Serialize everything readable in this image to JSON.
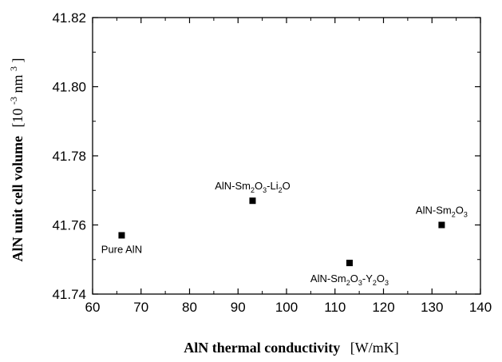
{
  "chart_data": {
    "type": "scatter",
    "xlabel": {
      "main": "AlN  thermal conductivity",
      "unit": "[W/mK]"
    },
    "ylabel": {
      "main": "AlN unit cell volume",
      "unit_prefix": "[10",
      "unit_exp1": "-3",
      "unit_mid": "nm",
      "unit_exp2": "3",
      "unit_suffix": "]"
    },
    "xlim": [
      60,
      140
    ],
    "ylim": [
      41.74,
      41.82
    ],
    "xticks": [
      60,
      70,
      80,
      90,
      100,
      110,
      120,
      130,
      140
    ],
    "xtick_labels": [
      "60",
      "70",
      "80",
      "90",
      "100",
      "110",
      "120",
      "130",
      "140"
    ],
    "yticks": [
      41.74,
      41.76,
      41.78,
      41.8,
      41.82
    ],
    "ytick_labels": [
      "41.74",
      "41.76",
      "41.78",
      "41.80",
      "41.82"
    ],
    "grid": false,
    "points": [
      {
        "x": 66,
        "y": 41.757,
        "label": [
          {
            "t": "Pure AlN"
          }
        ]
      },
      {
        "x": 93,
        "y": 41.767,
        "label": [
          {
            "t": "AlN-Sm"
          },
          {
            "t": "2",
            "sub": true
          },
          {
            "t": "O"
          },
          {
            "t": "3",
            "sub": true
          },
          {
            "t": "-Li"
          },
          {
            "t": "2",
            "sub": true
          },
          {
            "t": "O"
          }
        ]
      },
      {
        "x": 113,
        "y": 41.749,
        "label": [
          {
            "t": "AlN-Sm"
          },
          {
            "t": "2",
            "sub": true
          },
          {
            "t": "O"
          },
          {
            "t": "3",
            "sub": true
          },
          {
            "t": "-Y"
          },
          {
            "t": "2",
            "sub": true
          },
          {
            "t": "O"
          },
          {
            "t": "3",
            "sub": true
          }
        ]
      },
      {
        "x": 132,
        "y": 41.76,
        "label": [
          {
            "t": "AlN-Sm"
          },
          {
            "t": "2",
            "sub": true
          },
          {
            "t": "O"
          },
          {
            "t": "3",
            "sub": true
          }
        ]
      }
    ],
    "marker": "square",
    "marker_color": "#000000"
  }
}
